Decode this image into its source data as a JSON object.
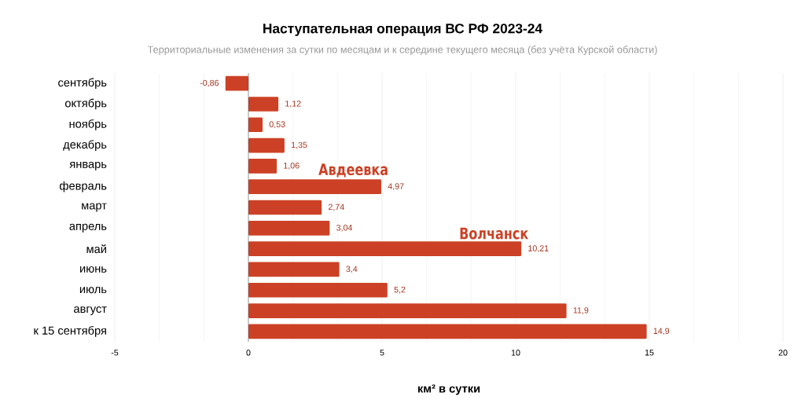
{
  "chart_data": {
    "type": "bar",
    "orientation": "horizontal",
    "title": "Наступательная операция ВС РФ 2023-24",
    "subtitle": "Территориальные изменения за сутки по месяцам и к середине текущего месяца (без учёта Курской области)",
    "xlabel": "км² в сутки",
    "categories": [
      "сентябрь",
      "октябрь",
      "ноябрь",
      "декабрь",
      "январь",
      "февраль",
      "март",
      "апрель",
      "май",
      "июнь",
      "июль",
      "август",
      "к 15 сентября"
    ],
    "values": [
      -0.86,
      1.12,
      0.53,
      1.35,
      1.06,
      4.97,
      2.74,
      3.04,
      10.21,
      3.4,
      5.2,
      11.9,
      14.9
    ],
    "value_labels": [
      "-0,86",
      "1,12",
      "0,53",
      "1,35",
      "1,06",
      "4,97",
      "2,74",
      "3,04",
      "10,21",
      "3,4",
      "5,2",
      "11,9",
      "14,9"
    ],
    "color": "#cc4125",
    "xlim": [
      -5,
      20
    ],
    "xticks": [
      -5,
      0,
      5,
      10,
      15,
      20
    ],
    "grid": "x",
    "annotations": [
      {
        "text": "Авдеевка",
        "x": 4.97,
        "y": "февраль"
      },
      {
        "text": "Волчанск",
        "x": 10.21,
        "y": "май"
      }
    ]
  }
}
